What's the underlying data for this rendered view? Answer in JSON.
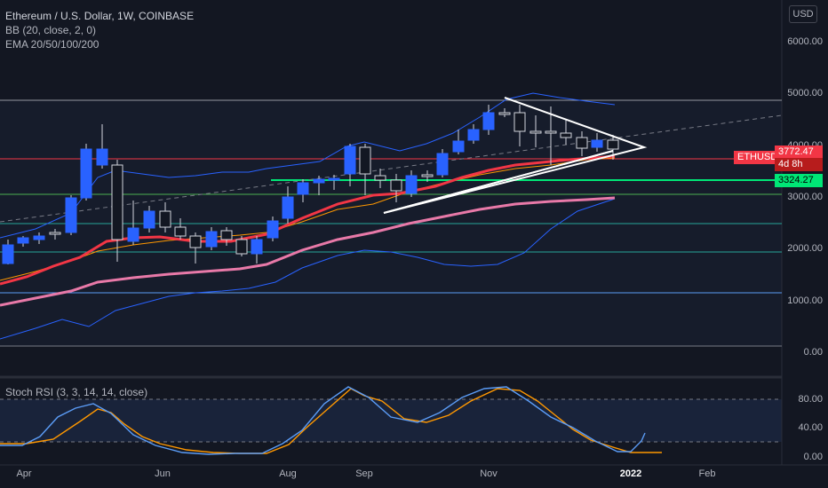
{
  "header": {
    "title": "Ethereum / U.S. Dollar, 1W, COINBASE",
    "indicator1": "BB (20, close, 2, 0)",
    "indicator2": "EMA 20/50/100/200",
    "currency_button": "USD"
  },
  "price_axis": [
    "6000.00",
    "5000.00",
    "4000.00",
    "3000.00",
    "2000.00",
    "1000.00",
    "0.00"
  ],
  "badges": {
    "symbol": "ETHUSD",
    "last_price": "3772.47",
    "countdown": "4d 8h",
    "support": "3324.27"
  },
  "stoch_panel": {
    "label": "Stoch RSI (3, 3, 14, 14, close)",
    "axis": [
      "80.00",
      "40.00",
      "0.00"
    ]
  },
  "time_axis": [
    "Apr",
    "Jun",
    "Aug",
    "Sep",
    "Nov",
    "2022",
    "Feb"
  ],
  "colors": {
    "background": "#131722",
    "candle_up": "#2962ff",
    "candle_down": "#131722",
    "ema_red": "#f23645",
    "ema_orange": "#ff9800",
    "ema_pink": "#e879a8",
    "bollinger": "#2962ff",
    "support_green": "#00e676",
    "price_red": "#f23645"
  }
}
